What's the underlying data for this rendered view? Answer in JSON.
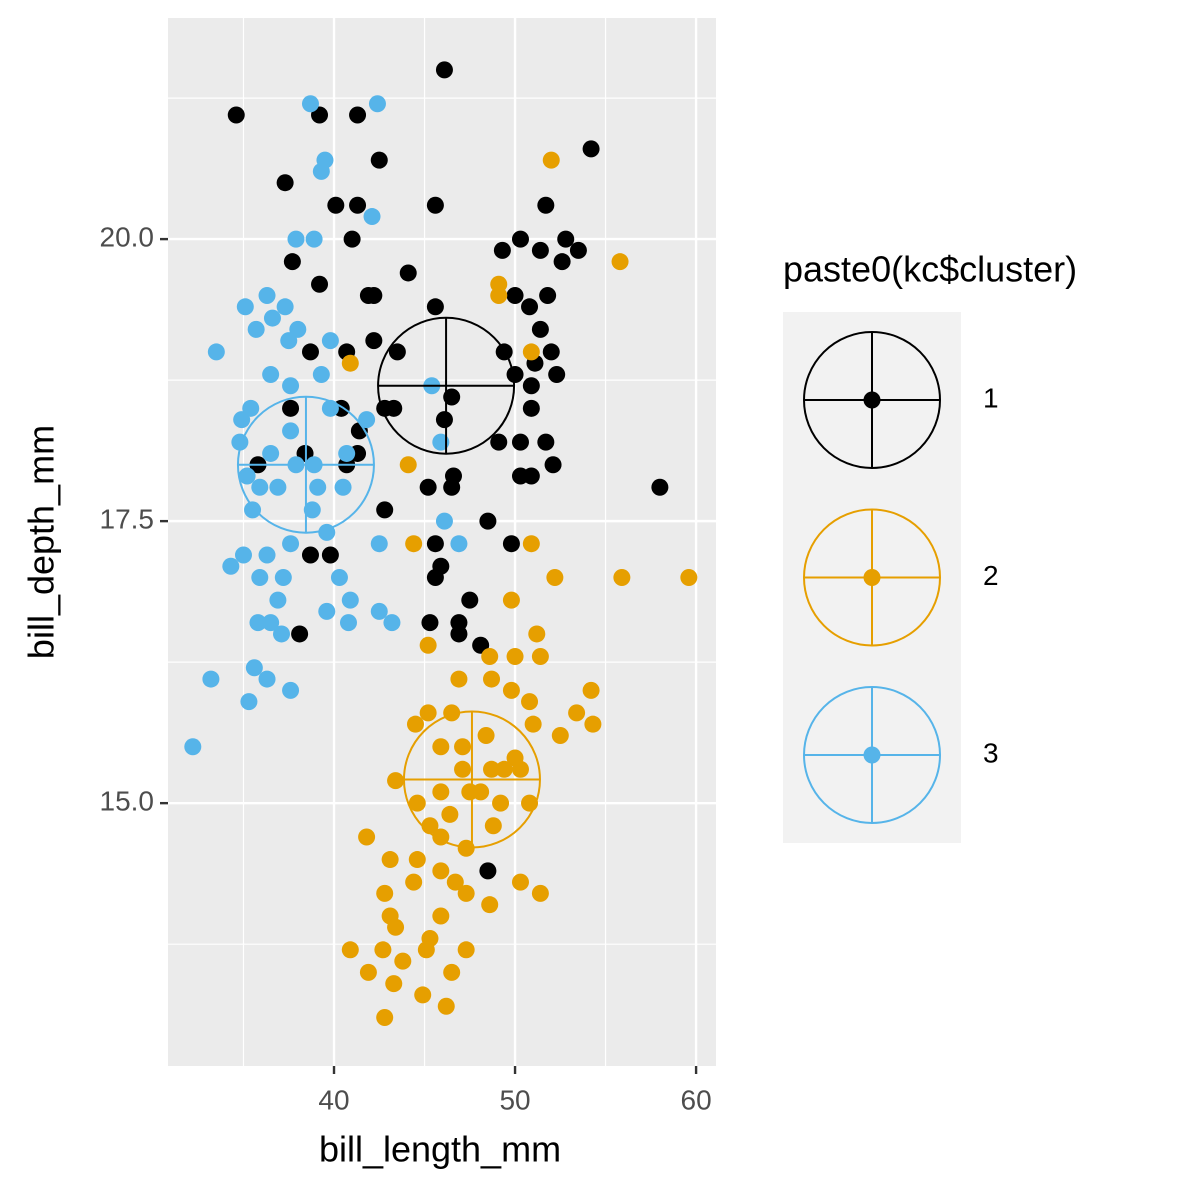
{
  "chart_data": {
    "type": "scatter",
    "x_label": "bill_length_mm",
    "y_label": "bill_depth_mm",
    "legend_title": "paste0(kc$cluster)",
    "legend": "right",
    "xlim": [
      30.83,
      61.1
    ],
    "ylim": [
      12.67,
      21.96
    ],
    "xticks": [
      40,
      50,
      60
    ],
    "yticks": [
      {
        "value": 15,
        "label": "15.0"
      },
      {
        "value": 17.5,
        "label": "17.5"
      },
      {
        "value": 20,
        "label": "20.0"
      }
    ],
    "minor_xticks": [
      35,
      45,
      55
    ],
    "minor_yticks": [
      13.75,
      16.25,
      18.75,
      21.25
    ],
    "grid": true,
    "series": [
      {
        "name": "1",
        "color": "#000000",
        "center": {
          "x": 46.19,
          "y": 18.7
        },
        "x": [
          46.1,
          34.6,
          39.2,
          41.3,
          54.2,
          42.5,
          37.3,
          45.6,
          51.7,
          40.1,
          41.3,
          41.0,
          50.3,
          52.8,
          53.5,
          49.3,
          51.4,
          37.7,
          52.6,
          44.1,
          39.2,
          42.2,
          41.9,
          50.0,
          51.8,
          45.6,
          50.8,
          51.4,
          42.2,
          38.7,
          40.7,
          43.5,
          49.4,
          52.0,
          51.1,
          50.0,
          50.9,
          52.3,
          42.8,
          43.3,
          37.6,
          40.4,
          46.5,
          50.9,
          41.4,
          49.1,
          50.3,
          51.7,
          41.3,
          40.7,
          35.8,
          52.1,
          46.6,
          50.3,
          50.9,
          45.2,
          46.5,
          58.0,
          42.8,
          48.5,
          45.6,
          49.8,
          38.7,
          39.8,
          45.9,
          45.6,
          47.5,
          45.3,
          46.9,
          46.9,
          38.1,
          48.1,
          48.5,
          46.1,
          38.4
        ],
        "values": [
          21.5,
          21.1,
          21.1,
          21.1,
          20.8,
          20.7,
          20.5,
          20.3,
          20.3,
          20.3,
          20.3,
          20.0,
          20.0,
          20.0,
          19.9,
          19.9,
          19.9,
          19.8,
          19.8,
          19.7,
          19.6,
          19.5,
          19.5,
          19.5,
          19.5,
          19.4,
          19.4,
          19.2,
          19.1,
          19.0,
          19.0,
          19.0,
          19.0,
          19.0,
          18.9,
          18.8,
          18.7,
          18.8,
          18.5,
          18.5,
          18.5,
          18.5,
          18.6,
          18.5,
          18.3,
          18.2,
          18.2,
          18.2,
          18.1,
          18.0,
          18.0,
          18.0,
          17.9,
          17.9,
          17.9,
          17.8,
          17.8,
          17.8,
          17.6,
          17.5,
          17.3,
          17.3,
          17.2,
          17.2,
          17.1,
          17.0,
          16.8,
          16.6,
          16.6,
          16.5,
          16.5,
          16.4,
          14.4,
          18.4,
          18.1
        ]
      },
      {
        "name": "2",
        "color": "#E69F00",
        "center": {
          "x": 47.62,
          "y": 15.21
        },
        "x": [
          52.0,
          55.8,
          49.1,
          49.1,
          50.9,
          40.9,
          44.1,
          44.4,
          50.9,
          52.2,
          55.9,
          59.6,
          49.8,
          45.2,
          51.2,
          51.4,
          48.6,
          50.0,
          46.9,
          48.7,
          49.8,
          54.2,
          50.8,
          45.2,
          46.5,
          53.4,
          51.0,
          44.5,
          54.3,
          48.4,
          52.5,
          45.9,
          47.1,
          50.0,
          47.1,
          48.7,
          50.3,
          43.4,
          45.9,
          47.5,
          49.2,
          50.8,
          44.6,
          46.4,
          45.3,
          48.8,
          41.8,
          45.9,
          47.3,
          44.6,
          43.1,
          45.9,
          46.7,
          44.4,
          42.8,
          50.3,
          51.4,
          47.3,
          48.6,
          43.1,
          45.9,
          43.4,
          45.3,
          40.9,
          42.7,
          45.1,
          47.3,
          43.8,
          41.9,
          46.5,
          43.3,
          44.9,
          46.2,
          42.8,
          48.1,
          49.4
        ],
        "values": [
          20.7,
          19.8,
          19.6,
          19.5,
          19.0,
          18.9,
          18.0,
          17.3,
          17.3,
          17.0,
          17.0,
          17.0,
          16.8,
          16.4,
          16.5,
          16.3,
          16.3,
          16.3,
          16.1,
          16.1,
          16.0,
          16.0,
          15.9,
          15.8,
          15.8,
          15.8,
          15.7,
          15.7,
          15.7,
          15.6,
          15.6,
          15.5,
          15.5,
          15.4,
          15.3,
          15.3,
          15.3,
          15.2,
          15.1,
          15.1,
          15.0,
          15.0,
          15.0,
          14.9,
          14.8,
          14.8,
          14.7,
          14.7,
          14.6,
          14.5,
          14.5,
          14.4,
          14.3,
          14.3,
          14.2,
          14.3,
          14.2,
          14.2,
          14.1,
          14.0,
          14.0,
          13.9,
          13.8,
          13.7,
          13.7,
          13.7,
          13.7,
          13.6,
          13.5,
          13.5,
          13.4,
          13.3,
          13.2,
          13.1,
          15.1,
          15.3
        ]
      },
      {
        "name": "3",
        "color": "#56B4E9",
        "center": {
          "x": 38.45,
          "y": 18.0
        },
        "x": [
          38.7,
          42.4,
          39.5,
          39.3,
          42.1,
          37.9,
          38.9,
          32.2,
          33.2,
          35.3,
          35.6,
          36.3,
          37.6,
          33.5,
          35.1,
          36.3,
          37.3,
          35.7,
          36.6,
          38.0,
          37.5,
          39.8,
          36.5,
          39.3,
          37.6,
          34.9,
          35.4,
          37.6,
          39.8,
          34.8,
          36.5,
          35.2,
          36.9,
          37.9,
          39.1,
          40.5,
          38.8,
          39.6,
          42.5,
          46.9,
          46.1,
          45.9,
          45.4,
          35.0,
          34.3,
          36.3,
          37.6,
          35.9,
          37.2,
          40.3,
          36.9,
          39.6,
          40.9,
          42.5,
          35.8,
          36.5,
          40.8,
          43.2,
          37.1,
          35.5,
          40.7,
          41.8,
          38.9,
          35.9
        ],
        "values": [
          21.2,
          21.2,
          20.7,
          20.6,
          20.2,
          20.0,
          20.0,
          15.5,
          16.1,
          15.9,
          16.2,
          16.1,
          16.0,
          19.0,
          19.4,
          19.5,
          19.4,
          19.2,
          19.3,
          19.2,
          19.1,
          19.1,
          18.8,
          18.8,
          18.7,
          18.4,
          18.5,
          18.3,
          18.5,
          18.2,
          18.1,
          17.9,
          17.8,
          18.0,
          17.8,
          17.8,
          17.6,
          17.4,
          17.3,
          17.3,
          17.5,
          18.2,
          18.7,
          17.2,
          17.1,
          17.2,
          17.3,
          17.0,
          17.0,
          17.0,
          16.8,
          16.7,
          16.8,
          16.7,
          16.6,
          16.6,
          16.6,
          16.6,
          16.5,
          17.6,
          18.1,
          18.4,
          18.0,
          17.8
        ]
      }
    ]
  }
}
